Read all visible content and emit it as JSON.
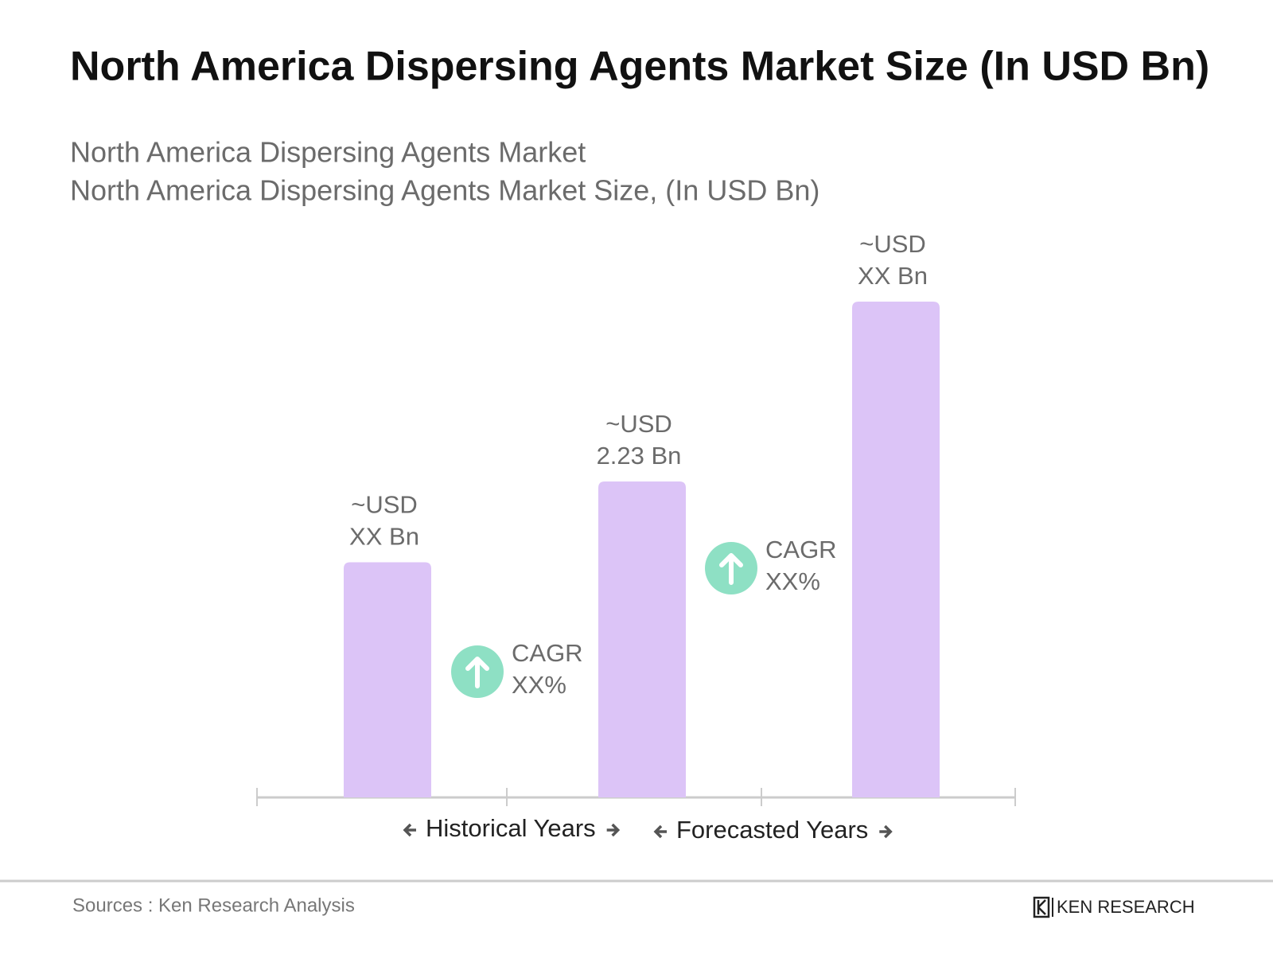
{
  "chart_data": {
    "type": "bar",
    "title": "North America Dispersing Agents Market Size (In USD Bn)",
    "subtitle": [
      "North America Dispersing Agents Market",
      "North America Dispersing Agents Market Size, (In USD Bn)"
    ],
    "categories": [
      null,
      null,
      null
    ],
    "values": [
      1.66,
      2.23,
      3.5
    ],
    "value_labels": [
      [
        "~USD",
        "XX Bn"
      ],
      [
        "~USD",
        "2.23 Bn"
      ],
      [
        "~USD",
        "XX Bn"
      ]
    ],
    "color": "#dcc4f7",
    "cagr_labels": [
      [
        "CAGR",
        "XX%"
      ],
      [
        "CAGR",
        "XX%"
      ]
    ],
    "cagr_color": "#8ee0c4",
    "period_labels": [
      "Historical Years",
      "Forecasted Years"
    ],
    "source": "Sources : Ken Research Analysis",
    "brand": "KEN RESEARCH"
  }
}
